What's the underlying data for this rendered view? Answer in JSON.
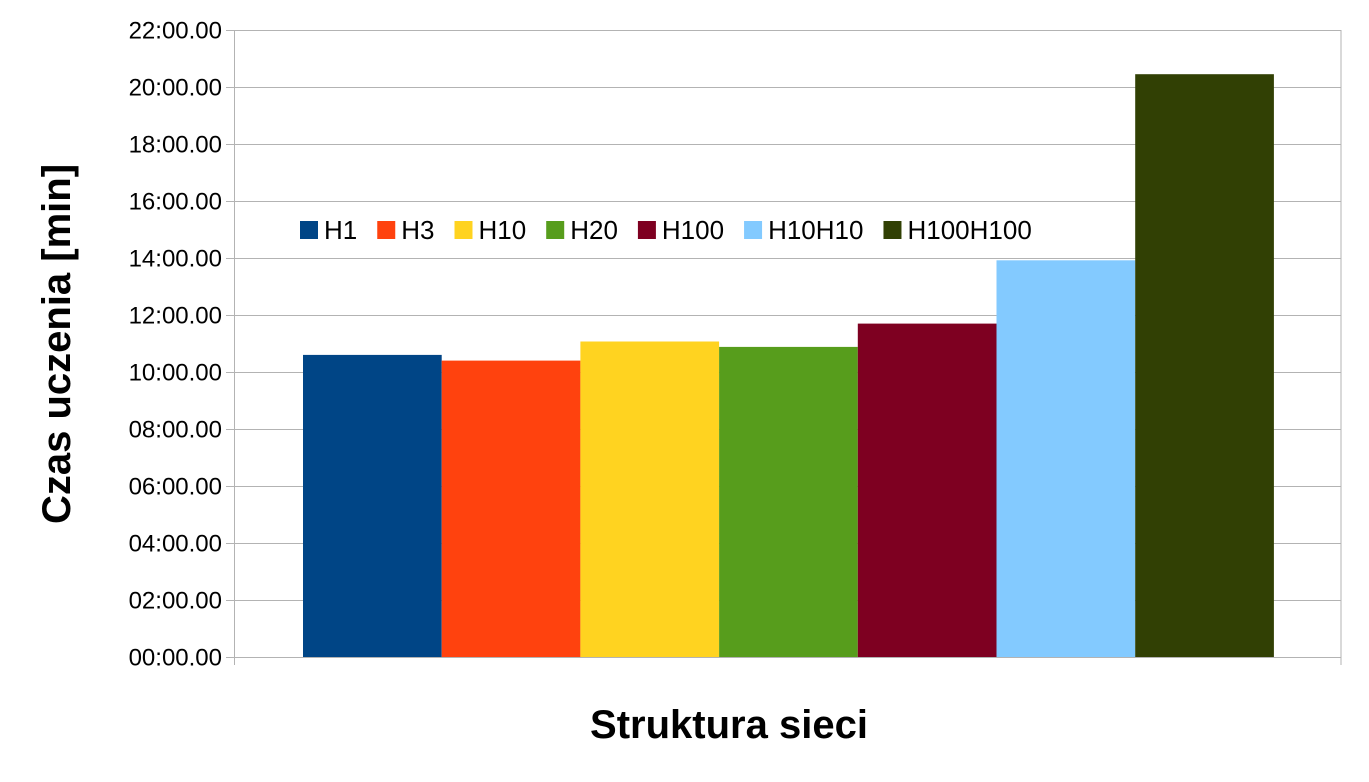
{
  "chart_data": {
    "type": "bar",
    "xlabel": "Struktura sieci",
    "ylabel": "Czas uczenia [min]",
    "ylim": [
      0,
      22
    ],
    "y_ticks": [
      0,
      2,
      4,
      6,
      8,
      10,
      12,
      14,
      16,
      18,
      20,
      22
    ],
    "y_tick_labels": [
      "00:00.00",
      "02:00.00",
      "04:00.00",
      "06:00.00",
      "08:00.00",
      "10:00.00",
      "12:00.00",
      "14:00.00",
      "16:00.00",
      "18:00.00",
      "20:00.00",
      "22:00.00"
    ],
    "grid": true,
    "legend_position": "top",
    "series": [
      {
        "name": "H1",
        "value": 10.6,
        "color": "#004586"
      },
      {
        "name": "H3",
        "value": 10.4,
        "color": "#ff420e"
      },
      {
        "name": "H10",
        "value": 11.07,
        "color": "#ffd320"
      },
      {
        "name": "H20",
        "value": 10.88,
        "color": "#579d1c"
      },
      {
        "name": "H100",
        "value": 11.7,
        "color": "#7e0021"
      },
      {
        "name": "H10H10",
        "value": 13.92,
        "color": "#83caff"
      },
      {
        "name": "H100H100",
        "value": 20.45,
        "color": "#314004"
      }
    ]
  }
}
